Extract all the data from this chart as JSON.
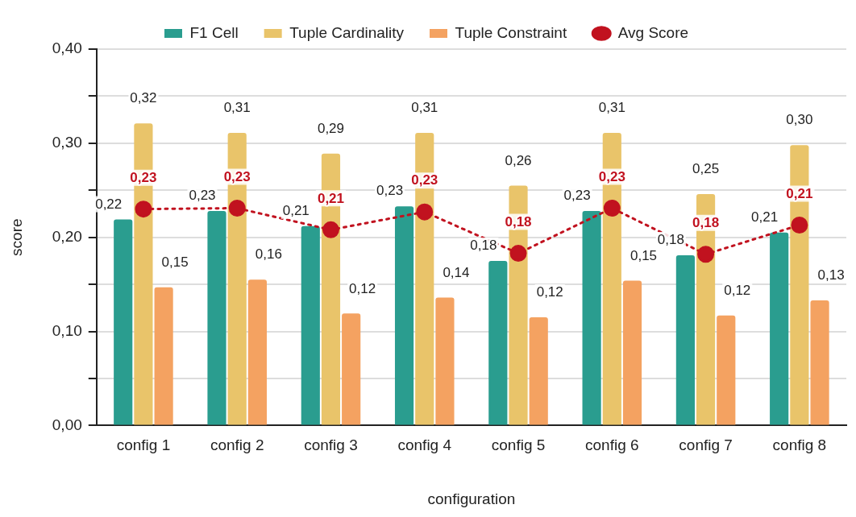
{
  "chart_data": {
    "type": "bar",
    "xlabel": "configuration",
    "ylabel": "score",
    "categories": [
      "config 1",
      "config 2",
      "config 3",
      "config 4",
      "config 5",
      "config 6",
      "config 7",
      "config 8"
    ],
    "series": [
      {
        "name": "F1 Cell",
        "color": "#2a9d8f",
        "values": [
          0.219,
          0.228,
          0.212,
          0.233,
          0.175,
          0.228,
          0.181,
          0.205
        ],
        "value_labels": [
          "0,22",
          "0,23",
          "0,21",
          "0,23",
          "0,18",
          "0,23",
          "0,18",
          "0,21"
        ]
      },
      {
        "name": "Tuple Cardinality",
        "color": "#e9c46a",
        "values": [
          0.321,
          0.311,
          0.289,
          0.311,
          0.255,
          0.311,
          0.246,
          0.298
        ],
        "value_labels": [
          "0,32",
          "0,31",
          "0,29",
          "0,31",
          "0,26",
          "0,31",
          "0,25",
          "0,30"
        ]
      },
      {
        "name": "Tuple Constraint",
        "color": "#f4a261",
        "values": [
          0.147,
          0.155,
          0.119,
          0.136,
          0.115,
          0.154,
          0.117,
          0.133
        ],
        "value_labels": [
          "0,15",
          "0,16",
          "0,12",
          "0,14",
          "0,12",
          "0,15",
          "0,12",
          "0,13"
        ]
      },
      {
        "name": "Avg Score",
        "type": "line",
        "color": "#c1121f",
        "marker": "circle",
        "line_style": "dotted",
        "values": [
          0.23,
          0.231,
          0.208,
          0.227,
          0.183,
          0.231,
          0.182,
          0.213
        ],
        "value_labels": [
          "0,23",
          "0,23",
          "0,21",
          "0,23",
          "0,18",
          "0,23",
          "0,18",
          "0,21"
        ]
      }
    ],
    "ylim": [
      0,
      0.4
    ],
    "yticks": [
      {
        "value": 0,
        "label": "0,00"
      },
      {
        "value": 0.05,
        "label": null
      },
      {
        "value": 0.1,
        "label": "0,10"
      },
      {
        "value": 0.15,
        "label": null
      },
      {
        "value": 0.2,
        "label": "0,20"
      },
      {
        "value": 0.25,
        "label": null
      },
      {
        "value": 0.3,
        "label": "0,30"
      },
      {
        "value": 0.35,
        "label": null
      },
      {
        "value": 0.4,
        "label": "0,40"
      }
    ],
    "grid": "y",
    "legend": "top"
  }
}
